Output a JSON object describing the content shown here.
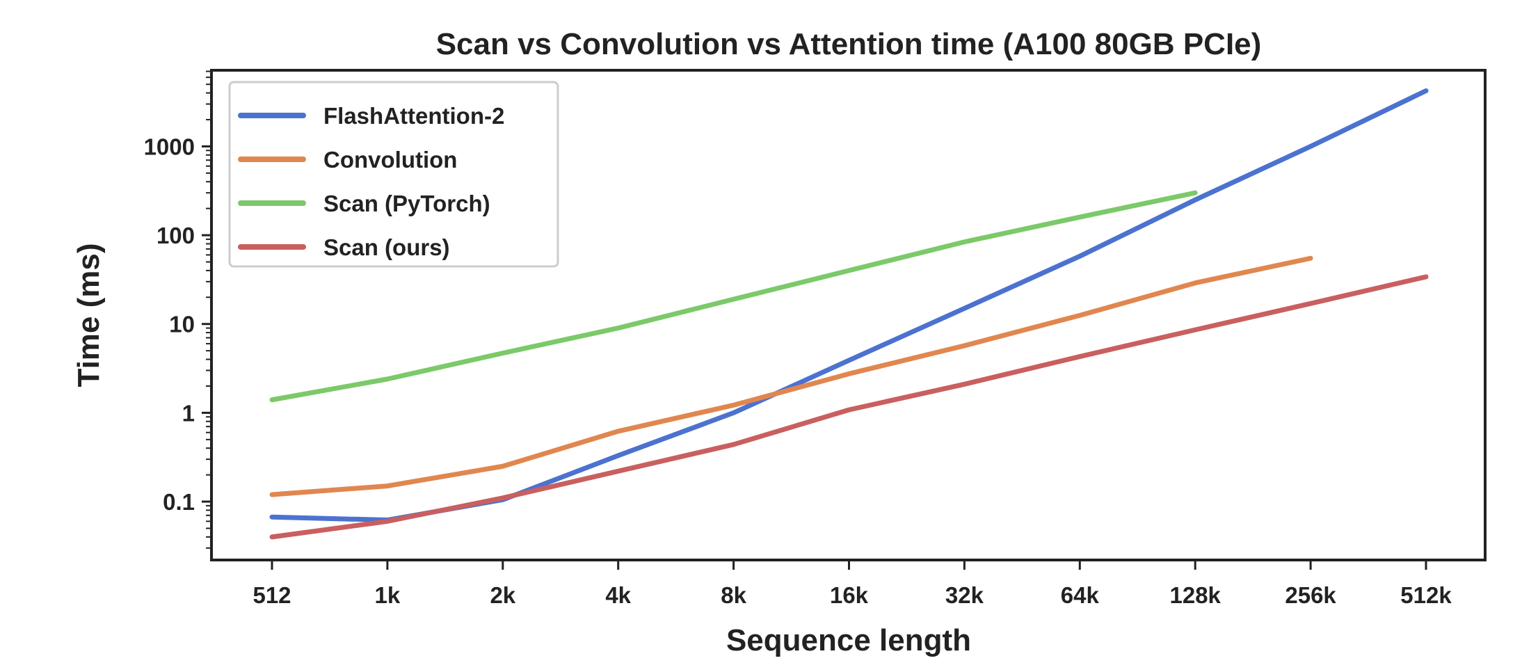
{
  "chart_data": {
    "type": "line",
    "title": "Scan vs Convolution vs Attention time (A100 80GB PCIe)",
    "xlabel": "Sequence length",
    "ylabel": "Time (ms)",
    "yscale": "log",
    "ylim": [
      0.022,
      7200
    ],
    "x": [
      "512",
      "1k",
      "2k",
      "4k",
      "8k",
      "16k",
      "32k",
      "64k",
      "128k",
      "256k",
      "512k"
    ],
    "yticks": [
      {
        "v": 0.1,
        "label": "0.1"
      },
      {
        "v": 1,
        "label": "1"
      },
      {
        "v": 10,
        "label": "10"
      },
      {
        "v": 100,
        "label": "100"
      },
      {
        "v": 1000,
        "label": "1000"
      }
    ],
    "legend_position": "top-left",
    "series": [
      {
        "name": "FlashAttention-2",
        "color": "#4c72d0",
        "values": [
          0.067,
          0.062,
          0.105,
          0.33,
          1.0,
          3.9,
          15,
          58,
          250,
          1000,
          4230
        ]
      },
      {
        "name": "Convolution",
        "color": "#e0874f",
        "values": [
          0.12,
          0.15,
          0.25,
          0.62,
          1.22,
          2.75,
          5.7,
          12.5,
          29,
          55,
          null
        ]
      },
      {
        "name": "Scan (PyTorch)",
        "color": "#7cc96a",
        "values": [
          1.4,
          2.4,
          4.7,
          9,
          19,
          40,
          84,
          160,
          300,
          null,
          null
        ]
      },
      {
        "name": "Scan (ours)",
        "color": "#c95f5f",
        "values": [
          0.04,
          0.06,
          0.11,
          0.22,
          0.44,
          1.08,
          2.1,
          4.3,
          8.6,
          17,
          34
        ]
      }
    ]
  }
}
